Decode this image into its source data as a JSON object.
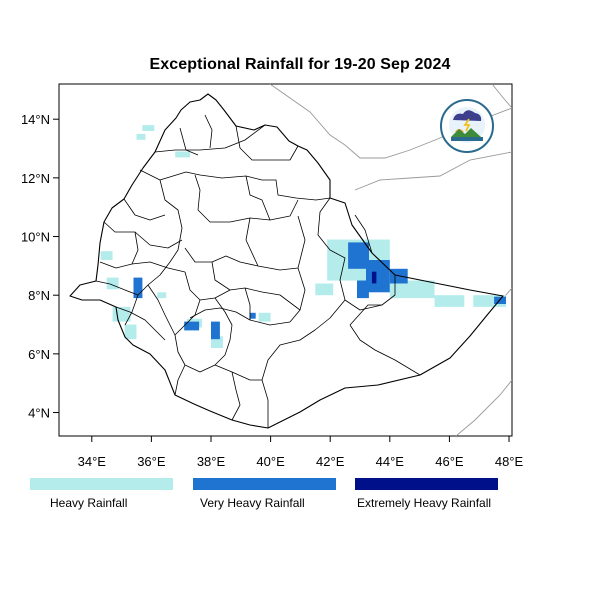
{
  "title": "Exceptional Rainfall for 19-20 Sep 2024",
  "axes": {
    "lat": {
      "range": [
        3.2,
        15.2
      ],
      "ticks": [
        "4°N",
        "6°N",
        "8°N",
        "10°N",
        "12°N",
        "14°N"
      ],
      "tick_values": [
        4,
        6,
        8,
        10,
        12,
        14
      ]
    },
    "lon": {
      "range": [
        32.9,
        48.1
      ],
      "ticks": [
        "34°E",
        "36°E",
        "38°E",
        "40°E",
        "42°E",
        "44°E",
        "46°E",
        "48°E"
      ],
      "tick_values": [
        34,
        36,
        38,
        40,
        42,
        44,
        46,
        48
      ]
    }
  },
  "logo": {
    "name": "meteorology-institute-logo"
  },
  "colors": {
    "heavy": "#b4ecec",
    "very_heavy": "#1f74d2",
    "extremely_heavy": "#000f8a",
    "border": "#000000",
    "neighbour_border": "#999999"
  },
  "legend": [
    {
      "label": "Heavy Rainfall",
      "color": "#b4ecec"
    },
    {
      "label": "Very Heavy Rainfall",
      "color": "#1f74d2"
    },
    {
      "label": "Extremely Heavy Rainfall",
      "color": "#000f8a"
    }
  ],
  "rainfall_areas": [
    {
      "category": "heavy",
      "lon": [
        35.7,
        36.1
      ],
      "lat": [
        13.6,
        13.8
      ]
    },
    {
      "category": "heavy",
      "lon": [
        35.5,
        35.8
      ],
      "lat": [
        13.3,
        13.5
      ]
    },
    {
      "category": "heavy",
      "lon": [
        36.8,
        37.3
      ],
      "lat": [
        12.7,
        12.9
      ]
    },
    {
      "category": "heavy",
      "lon": [
        34.3,
        34.7
      ],
      "lat": [
        9.2,
        9.5
      ]
    },
    {
      "category": "heavy",
      "lon": [
        34.5,
        34.9
      ],
      "lat": [
        8.2,
        8.6
      ]
    },
    {
      "category": "heavy",
      "lon": [
        34.7,
        35.3
      ],
      "lat": [
        7.1,
        7.6
      ]
    },
    {
      "category": "heavy",
      "lon": [
        35.1,
        35.5
      ],
      "lat": [
        6.5,
        7.0
      ]
    },
    {
      "category": "heavy",
      "lon": [
        36.2,
        36.5
      ],
      "lat": [
        7.9,
        8.1
      ]
    },
    {
      "category": "heavy",
      "lon": [
        37.2,
        37.7
      ],
      "lat": [
        6.9,
        7.2
      ]
    },
    {
      "category": "heavy",
      "lon": [
        38.0,
        38.4
      ],
      "lat": [
        6.2,
        6.6
      ]
    },
    {
      "category": "heavy",
      "lon": [
        39.6,
        40.0
      ],
      "lat": [
        7.1,
        7.4
      ]
    },
    {
      "category": "heavy",
      "lon": [
        41.5,
        42.1
      ],
      "lat": [
        8.0,
        8.4
      ]
    },
    {
      "category": "heavy",
      "lon": [
        41.9,
        44.0
      ],
      "lat": [
        8.5,
        9.9
      ]
    },
    {
      "category": "heavy",
      "lon": [
        44.0,
        45.5
      ],
      "lat": [
        7.9,
        8.5
      ]
    },
    {
      "category": "heavy",
      "lon": [
        45.5,
        46.5
      ],
      "lat": [
        7.6,
        8.0
      ]
    },
    {
      "category": "heavy",
      "lon": [
        46.8,
        47.9
      ],
      "lat": [
        7.6,
        8.0
      ]
    },
    {
      "category": "very_heavy",
      "lon": [
        35.4,
        35.7
      ],
      "lat": [
        7.9,
        8.6
      ]
    },
    {
      "category": "very_heavy",
      "lon": [
        37.1,
        37.6
      ],
      "lat": [
        6.8,
        7.1
      ]
    },
    {
      "category": "very_heavy",
      "lon": [
        38.0,
        38.3
      ],
      "lat": [
        6.5,
        7.1
      ]
    },
    {
      "category": "very_heavy",
      "lon": [
        39.3,
        39.5
      ],
      "lat": [
        7.2,
        7.4
      ]
    },
    {
      "category": "very_heavy",
      "lon": [
        42.6,
        43.3
      ],
      "lat": [
        8.9,
        9.8
      ]
    },
    {
      "category": "very_heavy",
      "lon": [
        43.2,
        44.0
      ],
      "lat": [
        8.1,
        9.2
      ]
    },
    {
      "category": "very_heavy",
      "lon": [
        42.9,
        43.3
      ],
      "lat": [
        7.9,
        8.5
      ]
    },
    {
      "category": "very_heavy",
      "lon": [
        44.0,
        44.6
      ],
      "lat": [
        8.4,
        8.9
      ]
    },
    {
      "category": "very_heavy",
      "lon": [
        47.5,
        47.9
      ],
      "lat": [
        7.7,
        7.95
      ]
    },
    {
      "category": "extremely_heavy",
      "lon": [
        43.4,
        43.55
      ],
      "lat": [
        8.4,
        8.8
      ]
    }
  ]
}
